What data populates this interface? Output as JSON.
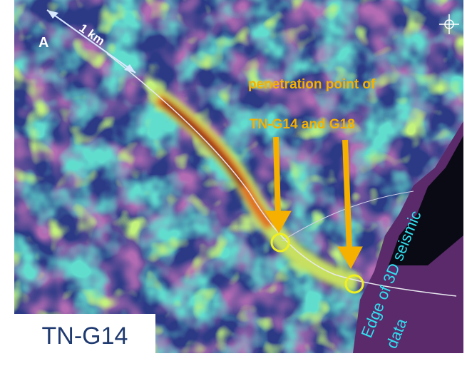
{
  "map": {
    "point_label": "A",
    "scale_label": "1 km",
    "annotation": {
      "line1": "penetration point of",
      "line2": "TN-G14 and G18"
    },
    "edge_label": {
      "line1": "Edge of 3D seismic",
      "line2": "data"
    },
    "survey_label": "TN-G14"
  }
}
